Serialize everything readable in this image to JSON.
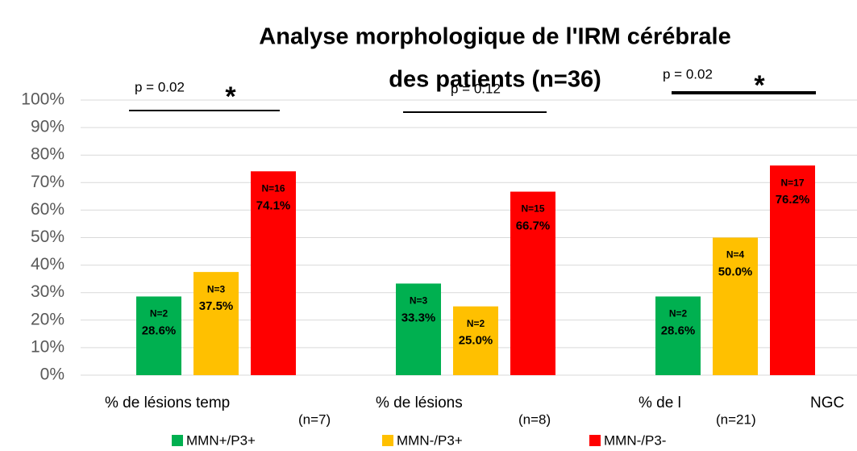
{
  "chart_data": {
    "type": "bar",
    "title": [
      "Analyse morphologique de l'IRM cérébrale",
      "des patients (n=36)"
    ],
    "categories": [
      "% de lésions temp",
      "% de lésions",
      "% de l"
    ],
    "category_notes": [
      "(n=7)",
      "(n=8)",
      "(n=21)"
    ],
    "extra_label": "NGC",
    "series": [
      {
        "name": "MMN+/P3+",
        "color": "#00b050",
        "values": [
          28.6,
          33.3,
          28.6
        ],
        "value_labels": [
          "28.6%",
          "33.3%",
          "28.6%"
        ],
        "count_labels": [
          "N=2",
          "N=3",
          "N=2"
        ]
      },
      {
        "name": "MMN-/P3+",
        "color": "#ffc000",
        "values": [
          37.5,
          25.0,
          50.0
        ],
        "value_labels": [
          "37.5%",
          "25.0%",
          "50.0%"
        ],
        "count_labels": [
          "N=3",
          "N=2",
          "N=4"
        ]
      },
      {
        "name": "MMN-/P3-",
        "color": "#ff0000",
        "values": [
          74.1,
          66.7,
          76.2
        ],
        "value_labels": [
          "74.1%",
          "66.7%",
          "76.2%"
        ],
        "count_labels": [
          "N=16",
          "N=15",
          "N=17"
        ]
      }
    ],
    "significance": [
      {
        "label": "p = 0.02",
        "star": "*"
      },
      {
        "label": "p = 0.12"
      },
      {
        "label": "p = 0.02",
        "star": "*"
      }
    ],
    "ylim": [
      0,
      100
    ],
    "yticks": [
      {
        "value": 0,
        "label": "0%"
      },
      {
        "value": 10,
        "label": "10%"
      },
      {
        "value": 20,
        "label": "20%"
      },
      {
        "value": 30,
        "label": "30%"
      },
      {
        "value": 40,
        "label": "40%"
      },
      {
        "value": 50,
        "label": "50%"
      },
      {
        "value": 60,
        "label": "60%"
      },
      {
        "value": 70,
        "label": "70%"
      },
      {
        "value": 80,
        "label": "80%"
      },
      {
        "value": 90,
        "label": "90%"
      },
      {
        "value": 100,
        "label": "100%"
      }
    ],
    "grid": true,
    "legend": "bottom"
  }
}
